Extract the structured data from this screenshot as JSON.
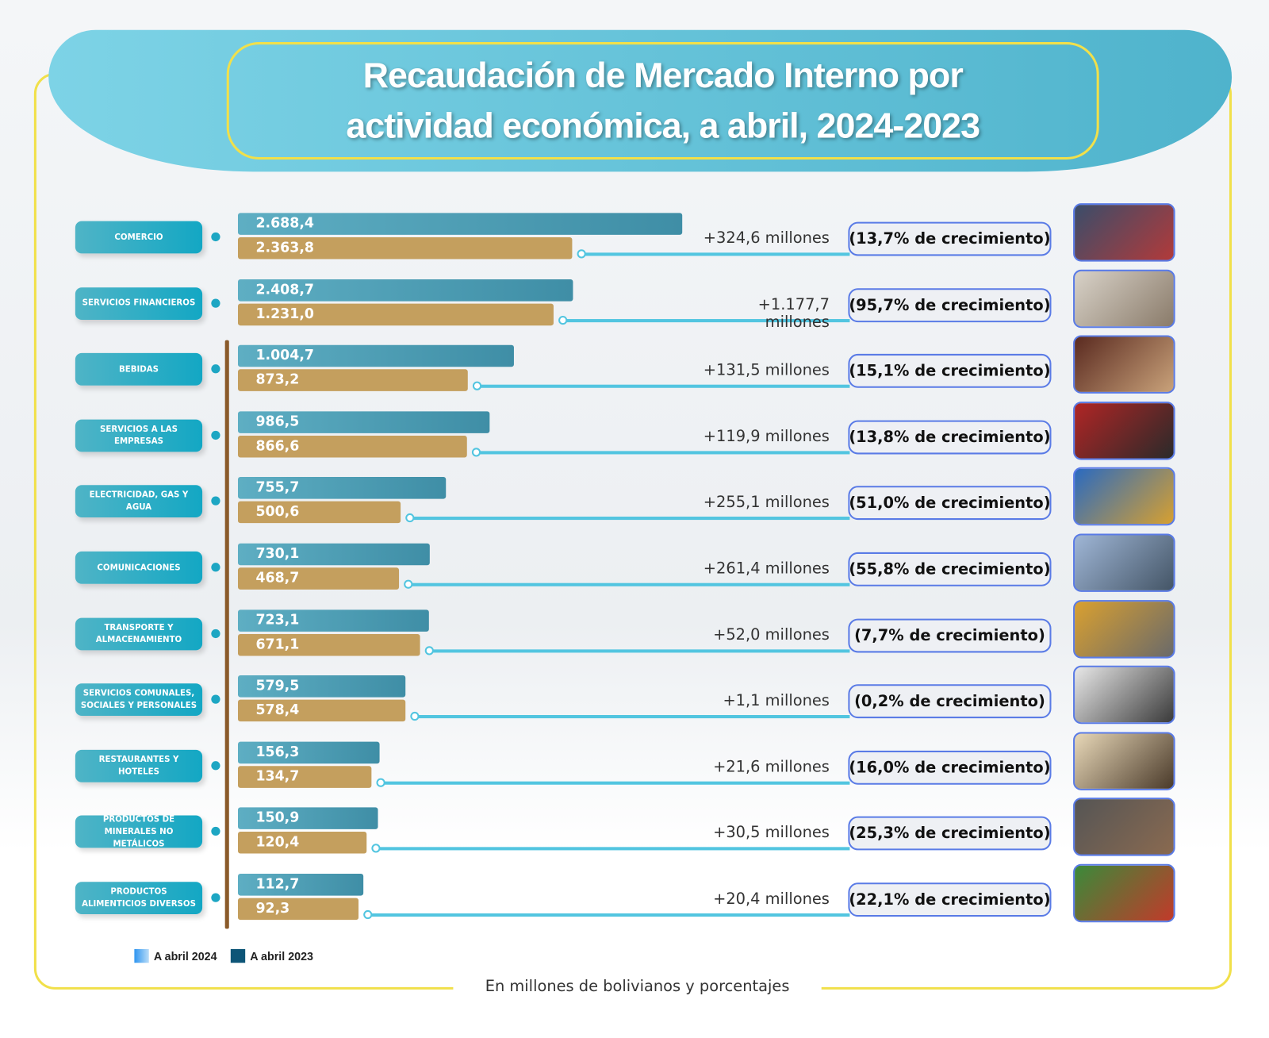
{
  "title": "Recaudación de Mercado Interno por actividad económica, a abril, 2024-2023",
  "footer": "En millones de bolivianos y porcentajes",
  "legend": [
    {
      "label": "A abril 2024",
      "color": "#3aa0f0"
    },
    {
      "label": "A abril 2023",
      "color": "#0d5577"
    }
  ],
  "colors": {
    "bar_2024": "#4f9eb5",
    "bar_2023": "#c49f5e",
    "accent": "#f1e04a",
    "pill": "#13a7c4"
  },
  "chart_data": {
    "type": "bar",
    "orientation": "horizontal",
    "categories": [
      "COMERCIO",
      "SERVICIOS FINANCIEROS",
      "BEBIDAS",
      "SERVICIOS A LAS EMPRESAS",
      "ELECTRICIDAD, GAS Y AGUA",
      "COMUNICACIONES",
      "TRANSPORTE Y ALMACENAMIENTO",
      "SERVICIOS COMUNALES, SOCIALES Y PERSONALES",
      "RESTAURANTES Y HOTELES",
      "PRODUCTOS DE MINERALES NO METÁLICOS",
      "PRODUCTOS ALIMENTICIOS DIVERSOS"
    ],
    "series": [
      {
        "name": "A abril 2024",
        "values": [
          2688.4,
          2408.7,
          1004.7,
          986.5,
          755.7,
          730.1,
          723.1,
          579.5,
          156.3,
          150.9,
          112.7
        ],
        "labels": [
          "2.688,4",
          "2.408,7",
          "1.004,7",
          "986,5",
          "755,7",
          "730,1",
          "723,1",
          "579,5",
          "156,3",
          "150,9",
          "112,7"
        ]
      },
      {
        "name": "A abril 2023",
        "values": [
          2363.8,
          1231.0,
          873.2,
          866.6,
          500.6,
          468.7,
          671.1,
          578.4,
          134.7,
          120.4,
          92.3
        ],
        "labels": [
          "2.363,8",
          "1.231,0",
          "873,2",
          "866,6",
          "500,6",
          "468,7",
          "671,1",
          "578,4",
          "134,7",
          "120,4",
          "92,3"
        ]
      }
    ],
    "differences": [
      "+324,6 millones",
      "+1.177,7 millones",
      "+131,5 millones",
      "+119,9 millones",
      "+255,1 millones",
      "+261,4 millones",
      "+52,0 millones",
      "+1,1 millones",
      "+21,6 millones",
      "+30,5 millones",
      "+20,4 millones"
    ],
    "growth": [
      "(13,7% de crecimiento)",
      "(95,7% de crecimiento)",
      "(15,1% de crecimiento)",
      "(13,8% de crecimiento)",
      "(51,0% de crecimiento)",
      "(55,8% de crecimiento)",
      "(7,7% de crecimiento)",
      "(0,2% de crecimiento)",
      "(16,0% de crecimiento)",
      "(25,3% de crecimiento)",
      "(22,1% de crecimiento)"
    ],
    "photos": [
      "shop-photo",
      "finance-photo",
      "drinks-photo",
      "bus-photo",
      "utilities-photo",
      "telecom-photo",
      "warehouse-photo",
      "classroom-photo",
      "restaurant-photo",
      "coal-photo",
      "food-photo"
    ],
    "unit": "En millones de bolivianos y porcentajes"
  }
}
